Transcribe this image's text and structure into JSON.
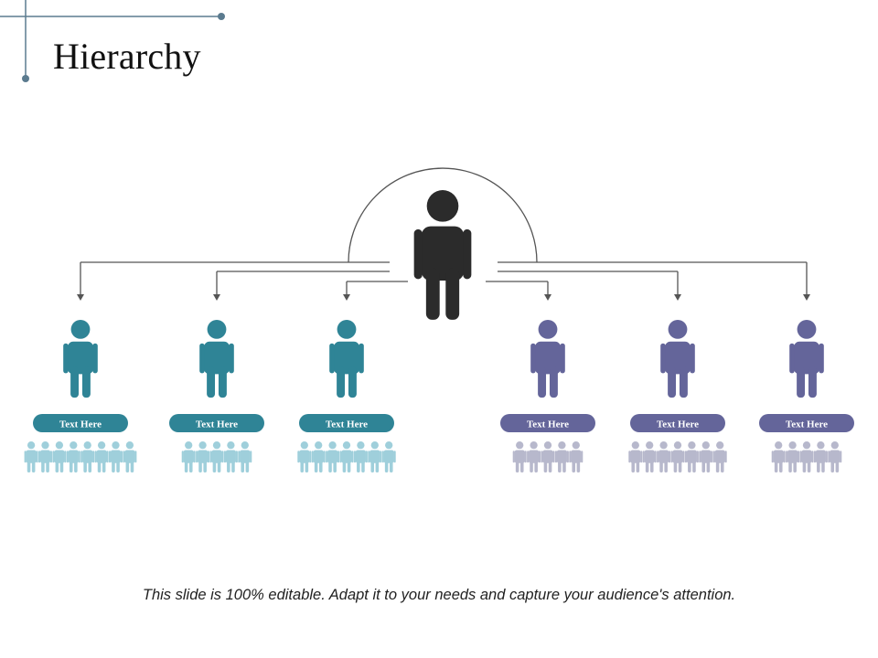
{
  "slide": {
    "title": "Hierarchy",
    "footer": "This slide is 100% editable. Adapt it to your needs and capture your audience's attention."
  },
  "colors": {
    "leader": "#2b2b2b",
    "teal": "#2f8496",
    "teal_light": "#9fcfdb",
    "purple": "#64659a",
    "purple_light": "#b7b8cc",
    "connector": "#555555",
    "decor": "#5b7b8f"
  },
  "leader": {
    "icon": "person-icon"
  },
  "members": [
    {
      "label": "Text Here",
      "group": "teal",
      "team_size": 8
    },
    {
      "label": "Text Here",
      "group": "teal",
      "team_size": 5
    },
    {
      "label": "Text Here",
      "group": "teal",
      "team_size": 7
    },
    {
      "label": "Text Here",
      "group": "purple",
      "team_size": 5
    },
    {
      "label": "Text Here",
      "group": "purple",
      "team_size": 7
    },
    {
      "label": "Text Here",
      "group": "purple",
      "team_size": 5
    }
  ]
}
